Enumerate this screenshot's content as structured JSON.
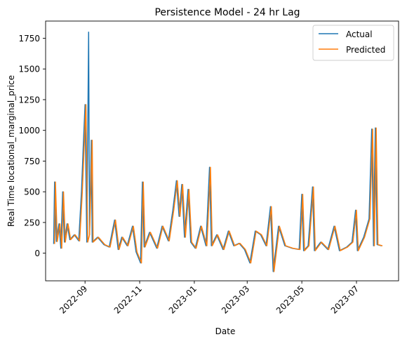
{
  "chart_data": {
    "type": "line",
    "title": "Persistence Model - 24 hr Lag",
    "xlabel": "Date",
    "ylabel": "Real Time locational_marginal_price",
    "xlim": [
      "2022-07-19",
      "2023-08-17"
    ],
    "ylim": [
      -225,
      1890
    ],
    "x_ticks": [
      "2022-09",
      "2022-11",
      "2023-01",
      "2023-03",
      "2023-05",
      "2023-07"
    ],
    "y_ticks": [
      0,
      250,
      500,
      750,
      1000,
      1250,
      1500,
      1750
    ],
    "grid": false,
    "legend_position": "top-right",
    "series": [
      {
        "name": "Actual",
        "color": "#1f77b4",
        "points": [
          [
            "2022-07-28",
            75
          ],
          [
            "2022-07-29",
            580
          ],
          [
            "2022-07-31",
            95
          ],
          [
            "2022-08-03",
            240
          ],
          [
            "2022-08-05",
            40
          ],
          [
            "2022-08-07",
            500
          ],
          [
            "2022-08-09",
            90
          ],
          [
            "2022-08-12",
            240
          ],
          [
            "2022-08-15",
            110
          ],
          [
            "2022-08-20",
            150
          ],
          [
            "2022-08-25",
            100
          ],
          [
            "2022-08-28",
            500
          ],
          [
            "2022-08-30",
            860
          ],
          [
            "2022-09-01",
            1210
          ],
          [
            "2022-09-03",
            90
          ],
          [
            "2022-09-05",
            1800
          ],
          [
            "2022-09-06",
            150
          ],
          [
            "2022-09-08",
            920
          ],
          [
            "2022-09-09",
            90
          ],
          [
            "2022-09-15",
            130
          ],
          [
            "2022-09-22",
            70
          ],
          [
            "2022-09-28",
            50
          ],
          [
            "2022-10-04",
            270
          ],
          [
            "2022-10-08",
            30
          ],
          [
            "2022-10-12",
            130
          ],
          [
            "2022-10-18",
            60
          ],
          [
            "2022-10-24",
            220
          ],
          [
            "2022-10-28",
            10
          ],
          [
            "2022-11-02",
            -80
          ],
          [
            "2022-11-04",
            580
          ],
          [
            "2022-11-06",
            50
          ],
          [
            "2022-11-12",
            170
          ],
          [
            "2022-11-20",
            40
          ],
          [
            "2022-11-26",
            220
          ],
          [
            "2022-12-03",
            100
          ],
          [
            "2022-12-08",
            350
          ],
          [
            "2022-12-12",
            590
          ],
          [
            "2022-12-15",
            300
          ],
          [
            "2022-12-18",
            560
          ],
          [
            "2022-12-21",
            130
          ],
          [
            "2022-12-25",
            520
          ],
          [
            "2022-12-28",
            90
          ],
          [
            "2023-01-02",
            40
          ],
          [
            "2023-01-08",
            220
          ],
          [
            "2023-01-14",
            60
          ],
          [
            "2023-01-18",
            700
          ],
          [
            "2023-01-20",
            60
          ],
          [
            "2023-01-26",
            150
          ],
          [
            "2023-02-02",
            30
          ],
          [
            "2023-02-08",
            180
          ],
          [
            "2023-02-14",
            60
          ],
          [
            "2023-02-20",
            80
          ],
          [
            "2023-02-26",
            30
          ],
          [
            "2023-03-04",
            -80
          ],
          [
            "2023-03-10",
            180
          ],
          [
            "2023-03-16",
            150
          ],
          [
            "2023-03-22",
            60
          ],
          [
            "2023-03-27",
            380
          ],
          [
            "2023-03-30",
            -150
          ],
          [
            "2023-04-05",
            220
          ],
          [
            "2023-04-12",
            60
          ],
          [
            "2023-04-20",
            40
          ],
          [
            "2023-04-28",
            30
          ],
          [
            "2023-05-01",
            480
          ],
          [
            "2023-05-03",
            20
          ],
          [
            "2023-05-08",
            60
          ],
          [
            "2023-05-13",
            540
          ],
          [
            "2023-05-15",
            20
          ],
          [
            "2023-05-22",
            90
          ],
          [
            "2023-05-30",
            30
          ],
          [
            "2023-06-06",
            220
          ],
          [
            "2023-06-12",
            20
          ],
          [
            "2023-06-20",
            50
          ],
          [
            "2023-06-26",
            90
          ],
          [
            "2023-06-30",
            350
          ],
          [
            "2023-07-02",
            20
          ],
          [
            "2023-07-09",
            130
          ],
          [
            "2023-07-15",
            280
          ],
          [
            "2023-07-18",
            1010
          ],
          [
            "2023-07-20",
            60
          ],
          [
            "2023-07-22",
            1020
          ],
          [
            "2023-07-24",
            70
          ],
          [
            "2023-07-29",
            60
          ]
        ]
      },
      {
        "name": "Predicted",
        "color": "#ff7f0e",
        "points": [
          [
            "2022-07-29",
            75
          ],
          [
            "2022-07-30",
            580
          ],
          [
            "2022-08-01",
            95
          ],
          [
            "2022-08-04",
            240
          ],
          [
            "2022-08-06",
            40
          ],
          [
            "2022-08-08",
            500
          ],
          [
            "2022-08-10",
            90
          ],
          [
            "2022-08-13",
            240
          ],
          [
            "2022-08-16",
            110
          ],
          [
            "2022-08-21",
            150
          ],
          [
            "2022-08-26",
            100
          ],
          [
            "2022-08-29",
            500
          ],
          [
            "2022-08-31",
            860
          ],
          [
            "2022-09-02",
            1210
          ],
          [
            "2022-09-04",
            90
          ],
          [
            "2022-09-06",
            150
          ],
          [
            "2022-09-09",
            920
          ],
          [
            "2022-09-10",
            90
          ],
          [
            "2022-09-16",
            130
          ],
          [
            "2022-09-23",
            70
          ],
          [
            "2022-09-29",
            50
          ],
          [
            "2022-10-05",
            270
          ],
          [
            "2022-10-09",
            30
          ],
          [
            "2022-10-13",
            130
          ],
          [
            "2022-10-19",
            60
          ],
          [
            "2022-10-25",
            220
          ],
          [
            "2022-10-29",
            10
          ],
          [
            "2022-11-03",
            -80
          ],
          [
            "2022-11-05",
            580
          ],
          [
            "2022-11-07",
            50
          ],
          [
            "2022-11-13",
            170
          ],
          [
            "2022-11-21",
            40
          ],
          [
            "2022-11-27",
            220
          ],
          [
            "2022-12-04",
            100
          ],
          [
            "2022-12-09",
            350
          ],
          [
            "2022-12-13",
            590
          ],
          [
            "2022-12-16",
            300
          ],
          [
            "2022-12-19",
            560
          ],
          [
            "2022-12-22",
            130
          ],
          [
            "2022-12-26",
            520
          ],
          [
            "2022-12-29",
            90
          ],
          [
            "2023-01-03",
            40
          ],
          [
            "2023-01-09",
            220
          ],
          [
            "2023-01-15",
            60
          ],
          [
            "2023-01-19",
            700
          ],
          [
            "2023-01-21",
            60
          ],
          [
            "2023-01-27",
            150
          ],
          [
            "2023-02-03",
            30
          ],
          [
            "2023-02-09",
            180
          ],
          [
            "2023-02-15",
            60
          ],
          [
            "2023-02-21",
            80
          ],
          [
            "2023-02-27",
            30
          ],
          [
            "2023-03-05",
            -80
          ],
          [
            "2023-03-11",
            180
          ],
          [
            "2023-03-17",
            150
          ],
          [
            "2023-03-23",
            60
          ],
          [
            "2023-03-28",
            380
          ],
          [
            "2023-03-31",
            -150
          ],
          [
            "2023-04-06",
            220
          ],
          [
            "2023-04-13",
            60
          ],
          [
            "2023-04-21",
            40
          ],
          [
            "2023-04-29",
            30
          ],
          [
            "2023-05-02",
            480
          ],
          [
            "2023-05-04",
            20
          ],
          [
            "2023-05-09",
            60
          ],
          [
            "2023-05-14",
            540
          ],
          [
            "2023-05-16",
            20
          ],
          [
            "2023-05-23",
            90
          ],
          [
            "2023-05-31",
            30
          ],
          [
            "2023-06-07",
            220
          ],
          [
            "2023-06-13",
            20
          ],
          [
            "2023-06-21",
            50
          ],
          [
            "2023-06-27",
            90
          ],
          [
            "2023-07-01",
            350
          ],
          [
            "2023-07-03",
            20
          ],
          [
            "2023-07-10",
            130
          ],
          [
            "2023-07-16",
            280
          ],
          [
            "2023-07-19",
            1010
          ],
          [
            "2023-07-21",
            60
          ],
          [
            "2023-07-23",
            1020
          ],
          [
            "2023-07-25",
            70
          ],
          [
            "2023-07-30",
            60
          ]
        ]
      }
    ]
  }
}
